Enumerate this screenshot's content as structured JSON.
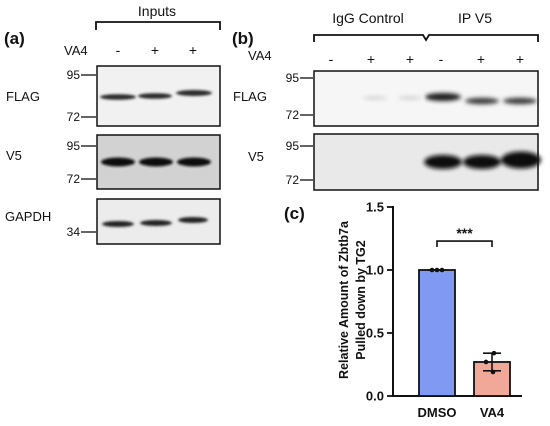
{
  "panel_a": {
    "label": "(a)",
    "header": "Inputs",
    "treatment_label": "VA4",
    "lane_signs": [
      "-",
      "+",
      "+"
    ],
    "blots": [
      {
        "name": "FLAG",
        "markers": [
          "95",
          "72"
        ]
      },
      {
        "name": "V5",
        "markers": [
          "95",
          "72"
        ]
      },
      {
        "name": "GAPDH",
        "markers": [
          "34"
        ]
      }
    ]
  },
  "panel_b": {
    "label": "(b)",
    "group_left": "IgG Control",
    "group_right": "IP V5",
    "treatment_label": "VA4",
    "lane_signs": [
      "-",
      "+",
      "+",
      "-",
      "+",
      "+"
    ],
    "blots": [
      {
        "name": "FLAG",
        "markers": [
          "95",
          "72"
        ]
      },
      {
        "name": "V5",
        "markers": [
          "95",
          "72"
        ]
      }
    ]
  },
  "panel_c": {
    "label": "(c)",
    "significance": "***"
  },
  "colors": {
    "dmso_bar": "#8099f2",
    "va4_bar": "#f2a898",
    "band": "#1a1a1a",
    "membrane": "#eeeeee"
  },
  "chart_data": {
    "type": "bar",
    "categories": [
      "DMSO",
      "VA4"
    ],
    "values": [
      1.0,
      0.27
    ],
    "error": [
      0.0,
      0.07
    ],
    "points": [
      [
        1.0,
        1.0,
        1.0
      ],
      [
        0.34,
        0.27,
        0.19
      ]
    ],
    "ylabel": "Relative Amount of Zbtb7a Pulled down by TG2",
    "yticks": [
      0.0,
      0.5,
      1.0,
      1.5
    ],
    "ylim": [
      0,
      1.5
    ],
    "bar_colors": [
      "#8099f2",
      "#f2a898"
    ]
  }
}
